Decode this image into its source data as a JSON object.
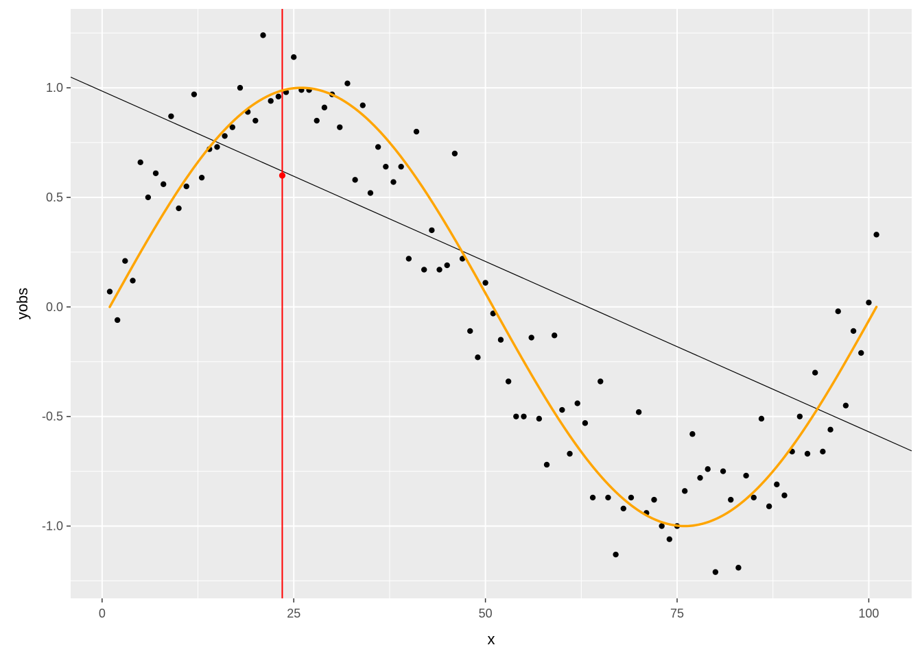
{
  "chart_data": {
    "type": "scatter",
    "title": "",
    "xlabel": "x",
    "ylabel": "yobs",
    "xlim": [
      -4.1,
      105.6
    ],
    "ylim": [
      -1.33,
      1.36
    ],
    "x_ticks": [
      0,
      25,
      50,
      75,
      100
    ],
    "x_tick_labels": [
      "0",
      "25",
      "50",
      "75",
      "100"
    ],
    "y_ticks": [
      -1.0,
      -0.5,
      0.0,
      0.5,
      1.0
    ],
    "y_tick_labels": [
      "-1.0",
      "-0.5",
      "0.0",
      "0.5",
      "1.0"
    ],
    "grid": true,
    "colors": {
      "panel": "#ebebeb",
      "grid": "#ffffff",
      "points": "#000000",
      "curve": "#ffa500",
      "regression_line": "#000000",
      "vline": "#ff0000",
      "highlight_point": "#ff0000"
    },
    "points": [
      [
        1,
        0.07
      ],
      [
        2,
        -0.06
      ],
      [
        3,
        0.21
      ],
      [
        4,
        0.12
      ],
      [
        5,
        0.66
      ],
      [
        6,
        0.5
      ],
      [
        7,
        0.61
      ],
      [
        8,
        0.56
      ],
      [
        9,
        0.87
      ],
      [
        10,
        0.45
      ],
      [
        11,
        0.55
      ],
      [
        12,
        0.97
      ],
      [
        13,
        0.59
      ],
      [
        14,
        0.72
      ],
      [
        15,
        0.73
      ],
      [
        16,
        0.78
      ],
      [
        17,
        0.82
      ],
      [
        18,
        1.0
      ],
      [
        19,
        0.89
      ],
      [
        20,
        0.85
      ],
      [
        21,
        1.24
      ],
      [
        22,
        0.94
      ],
      [
        23,
        0.96
      ],
      [
        24,
        0.98
      ],
      [
        25,
        1.14
      ],
      [
        26,
        0.99
      ],
      [
        27,
        0.99
      ],
      [
        28,
        0.85
      ],
      [
        29,
        0.91
      ],
      [
        30,
        0.97
      ],
      [
        31,
        0.82
      ],
      [
        32,
        1.02
      ],
      [
        33,
        0.58
      ],
      [
        34,
        0.92
      ],
      [
        35,
        0.52
      ],
      [
        36,
        0.73
      ],
      [
        37,
        0.64
      ],
      [
        38,
        0.57
      ],
      [
        39,
        0.64
      ],
      [
        40,
        0.22
      ],
      [
        41,
        0.8
      ],
      [
        42,
        0.17
      ],
      [
        43,
        0.35
      ],
      [
        44,
        0.17
      ],
      [
        45,
        0.19
      ],
      [
        46,
        0.7
      ],
      [
        47,
        0.22
      ],
      [
        48,
        -0.11
      ],
      [
        49,
        -0.23
      ],
      [
        50,
        0.11
      ],
      [
        51,
        -0.03
      ],
      [
        52,
        -0.15
      ],
      [
        53,
        -0.34
      ],
      [
        54,
        -0.5
      ],
      [
        55,
        -0.5
      ],
      [
        56,
        -0.14
      ],
      [
        57,
        -0.51
      ],
      [
        58,
        -0.72
      ],
      [
        59,
        -0.13
      ],
      [
        60,
        -0.47
      ],
      [
        61,
        -0.67
      ],
      [
        62,
        -0.44
      ],
      [
        63,
        -0.53
      ],
      [
        64,
        -0.87
      ],
      [
        65,
        -0.34
      ],
      [
        66,
        -0.87
      ],
      [
        67,
        -1.13
      ],
      [
        68,
        -0.92
      ],
      [
        69,
        -0.87
      ],
      [
        70,
        -0.48
      ],
      [
        71,
        -0.94
      ],
      [
        72,
        -0.88
      ],
      [
        73,
        -1.0
      ],
      [
        74,
        -1.06
      ],
      [
        75,
        -1.0
      ],
      [
        76,
        -0.84
      ],
      [
        77,
        -0.58
      ],
      [
        78,
        -0.78
      ],
      [
        79,
        -0.74
      ],
      [
        80,
        -1.21
      ],
      [
        81,
        -0.75
      ],
      [
        82,
        -0.88
      ],
      [
        83,
        -1.19
      ],
      [
        84,
        -0.77
      ],
      [
        85,
        -0.87
      ],
      [
        86,
        -0.51
      ],
      [
        87,
        -0.91
      ],
      [
        88,
        -0.81
      ],
      [
        89,
        -0.86
      ],
      [
        90,
        -0.66
      ],
      [
        91,
        -0.5
      ],
      [
        92,
        -0.67
      ],
      [
        93,
        -0.3
      ],
      [
        94,
        -0.66
      ],
      [
        95,
        -0.56
      ],
      [
        96,
        -0.02
      ],
      [
        97,
        -0.45
      ],
      [
        98,
        -0.11
      ],
      [
        99,
        -0.21
      ],
      [
        100,
        0.02
      ],
      [
        101,
        0.33
      ]
    ],
    "curve": {
      "function": "sin(2*pi*(x-1)/100)",
      "x_range": [
        1,
        101
      ]
    },
    "regression_line": {
      "intercept": 0.985,
      "slope": -0.01555
    },
    "vline_x": 23.5,
    "highlight_point": [
      23.5,
      0.6
    ]
  }
}
